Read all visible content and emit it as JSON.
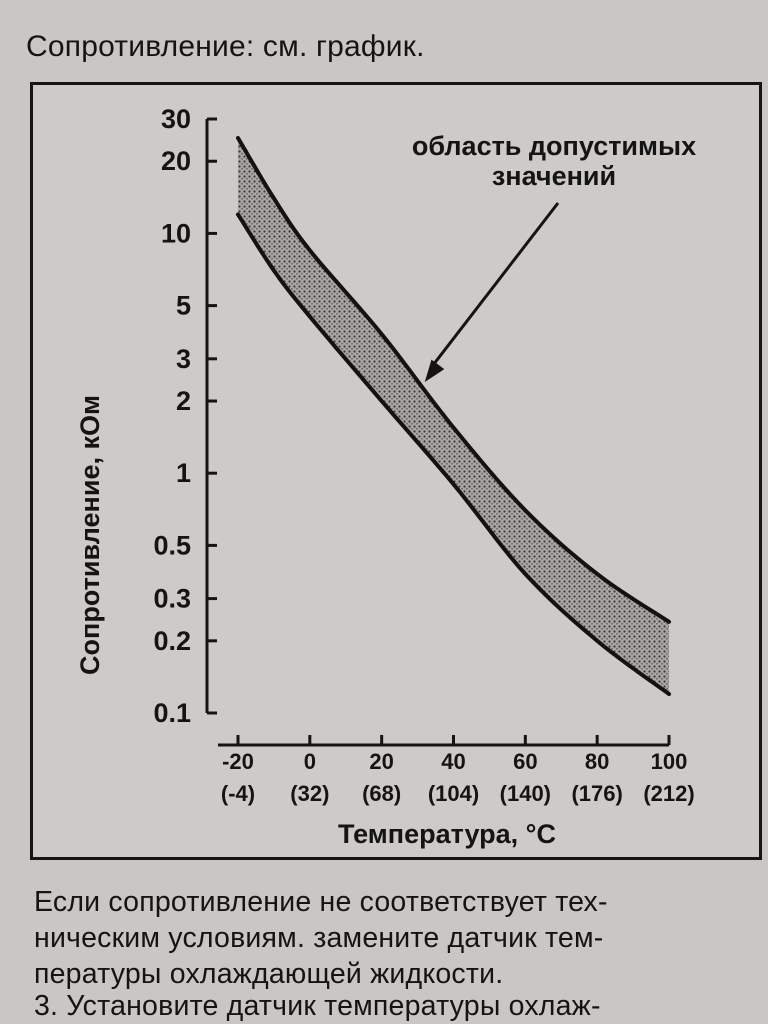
{
  "header": {
    "text": "Сопротивление: см. график."
  },
  "chart_data": {
    "type": "area",
    "title": "",
    "xlabel": "Температура, °C",
    "ylabel": "Сопротивление, кОм",
    "y_scale": "log",
    "ylim": [
      0.1,
      30
    ],
    "xlim": [
      -20,
      100
    ],
    "y_ticks": [
      "30",
      "20",
      "10",
      "5",
      "3",
      "2",
      "1",
      "0.5",
      "0.3",
      "0.2",
      "0.1"
    ],
    "y_tick_values": [
      30,
      20,
      10,
      5,
      3,
      2,
      1,
      0.5,
      0.3,
      0.2,
      0.1
    ],
    "x_ticks": [
      {
        "c": "-20",
        "f": "(-4)"
      },
      {
        "c": "0",
        "f": "(32)"
      },
      {
        "c": "20",
        "f": "(68)"
      },
      {
        "c": "40",
        "f": "(104)"
      },
      {
        "c": "60",
        "f": "(140)"
      },
      {
        "c": "80",
        "f": "(176)"
      },
      {
        "c": "100",
        "f": "(212)"
      }
    ],
    "x_tick_values": [
      -20,
      0,
      20,
      40,
      60,
      80,
      100
    ],
    "series": [
      {
        "name": "",
        "x": [
          -20,
          -10,
          0,
          20,
          40,
          60,
          80,
          100
        ],
        "y": [
          25,
          14,
          8.5,
          3.8,
          1.55,
          0.7,
          0.38,
          0.24
        ]
      },
      {
        "name": "",
        "x": [
          -20,
          -10,
          0,
          20,
          40,
          60,
          80,
          100
        ],
        "y": [
          12,
          7,
          4.5,
          2.0,
          0.9,
          0.38,
          0.2,
          0.12
        ]
      }
    ],
    "annotation": {
      "line1": "область допустимых",
      "line2": "значений",
      "arrow_to": {
        "x": 32,
        "y": 2.4
      }
    },
    "grid": false,
    "band_color": "#8a8784"
  },
  "body": {
    "p1": [
      "Если сопротивление не соответствует тех-",
      "ническим условиям. замените датчик тем-",
      "пературы охлаждающей жидкости."
    ],
    "p2": "3. Установите датчик температуры охлаж-"
  }
}
